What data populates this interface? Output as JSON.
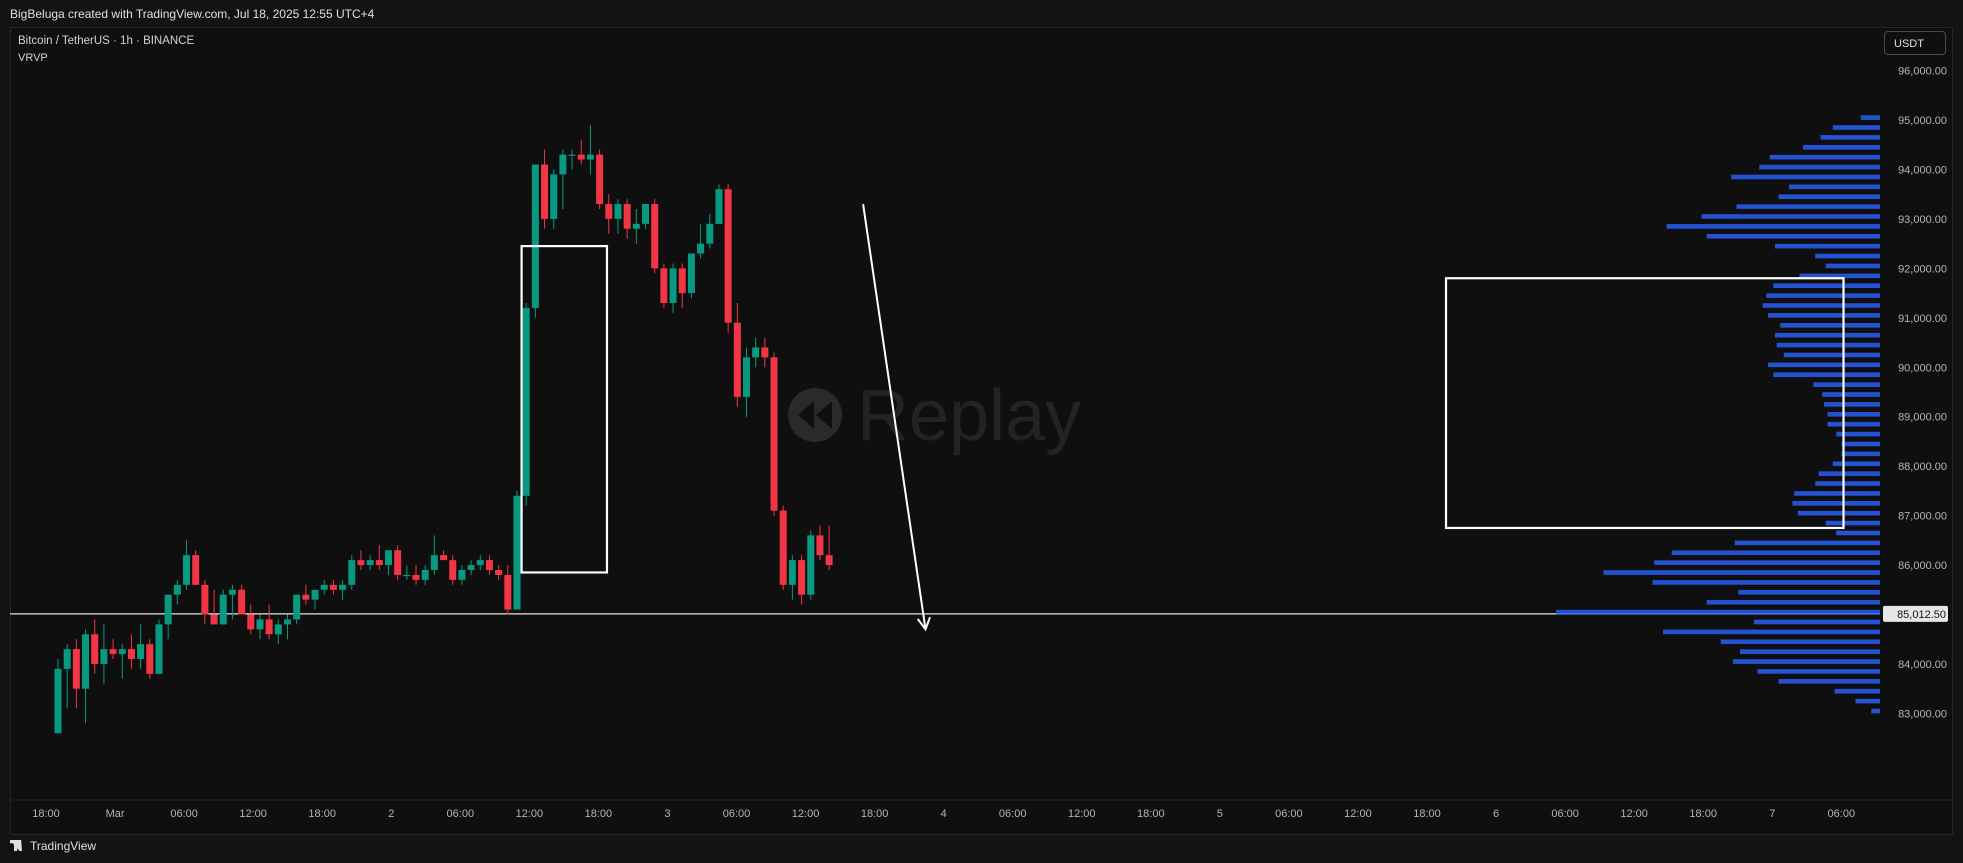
{
  "header": {
    "attribution": "BigBeluga created with TradingView.com, Jul 18, 2025 12:55 UTC+4"
  },
  "symbol": {
    "title": "Bitcoin / TetherUS · 1h · BINANCE",
    "indicator": "VRVP"
  },
  "currency_button": "USDT",
  "watermark": "Replay",
  "footer": {
    "brand": "TradingView"
  },
  "colors": {
    "up": "#089981",
    "down": "#f23645",
    "volume_profile": "#2962ff",
    "background": "#0f0f0f"
  },
  "chart_data": {
    "type": "candlestick",
    "title": "Bitcoin / TetherUS",
    "timeframe": "1h",
    "exchange": "BINANCE",
    "ylim": [
      82600,
      96200
    ],
    "y_ticks": [
      "96,000.00",
      "95,000.00",
      "94,000.00",
      "93,000.00",
      "92,000.00",
      "91,000.00",
      "90,000.00",
      "89,000.00",
      "88,000.00",
      "87,000.00",
      "86,000.00",
      "84,000.00",
      "83,000.00"
    ],
    "y_tick_values": [
      96000,
      95000,
      94000,
      93000,
      92000,
      91000,
      90000,
      89000,
      88000,
      87000,
      86000,
      84000,
      83000
    ],
    "x_ticks": [
      "18:00",
      "Mar",
      "06:00",
      "12:00",
      "18:00",
      "2",
      "06:00",
      "12:00",
      "18:00",
      "3",
      "06:00",
      "12:00",
      "18:00",
      "4",
      "06:00",
      "12:00",
      "18:00",
      "5",
      "06:00",
      "12:00",
      "18:00",
      "6",
      "06:00",
      "12:00",
      "18:00",
      "7",
      "06:00"
    ],
    "price_line": {
      "value": 85012.5,
      "label": "85,012.50"
    },
    "candles": [
      {
        "o": 82600,
        "h": 84100,
        "l": 82600,
        "c": 83900
      },
      {
        "o": 83900,
        "h": 84400,
        "l": 83100,
        "c": 84300
      },
      {
        "o": 84300,
        "h": 84500,
        "l": 83100,
        "c": 83500
      },
      {
        "o": 83500,
        "h": 84700,
        "l": 82800,
        "c": 84600
      },
      {
        "o": 84600,
        "h": 84900,
        "l": 83800,
        "c": 84000
      },
      {
        "o": 84000,
        "h": 84800,
        "l": 83600,
        "c": 84300
      },
      {
        "o": 84300,
        "h": 84500,
        "l": 84100,
        "c": 84200
      },
      {
        "o": 84200,
        "h": 84400,
        "l": 83700,
        "c": 84300
      },
      {
        "o": 84300,
        "h": 84600,
        "l": 83900,
        "c": 84100
      },
      {
        "o": 84100,
        "h": 84800,
        "l": 83900,
        "c": 84400
      },
      {
        "o": 84400,
        "h": 84500,
        "l": 83700,
        "c": 83800
      },
      {
        "o": 83800,
        "h": 84900,
        "l": 83800,
        "c": 84800
      },
      {
        "o": 84800,
        "h": 85400,
        "l": 84500,
        "c": 85400
      },
      {
        "o": 85400,
        "h": 85700,
        "l": 85200,
        "c": 85600
      },
      {
        "o": 85600,
        "h": 86500,
        "l": 85500,
        "c": 86200
      },
      {
        "o": 86200,
        "h": 86300,
        "l": 85600,
        "c": 85600
      },
      {
        "o": 85600,
        "h": 85700,
        "l": 84800,
        "c": 85000
      },
      {
        "o": 85000,
        "h": 85500,
        "l": 84800,
        "c": 84800
      },
      {
        "o": 84800,
        "h": 85500,
        "l": 84800,
        "c": 85400
      },
      {
        "o": 85400,
        "h": 85600,
        "l": 84900,
        "c": 85500
      },
      {
        "o": 85500,
        "h": 85600,
        "l": 85000,
        "c": 85000
      },
      {
        "o": 85000,
        "h": 85200,
        "l": 84600,
        "c": 84700
      },
      {
        "o": 84700,
        "h": 85000,
        "l": 84500,
        "c": 84900
      },
      {
        "o": 84900,
        "h": 85200,
        "l": 84500,
        "c": 84600
      },
      {
        "o": 84600,
        "h": 84900,
        "l": 84400,
        "c": 84800
      },
      {
        "o": 84800,
        "h": 85000,
        "l": 84500,
        "c": 84900
      },
      {
        "o": 84900,
        "h": 85400,
        "l": 84800,
        "c": 85400
      },
      {
        "o": 85400,
        "h": 85600,
        "l": 85200,
        "c": 85300
      },
      {
        "o": 85300,
        "h": 85500,
        "l": 85100,
        "c": 85500
      },
      {
        "o": 85500,
        "h": 85700,
        "l": 85400,
        "c": 85600
      },
      {
        "o": 85600,
        "h": 85700,
        "l": 85400,
        "c": 85500
      },
      {
        "o": 85500,
        "h": 85700,
        "l": 85300,
        "c": 85600
      },
      {
        "o": 85600,
        "h": 86200,
        "l": 85500,
        "c": 86100
      },
      {
        "o": 86100,
        "h": 86300,
        "l": 85900,
        "c": 86000
      },
      {
        "o": 86000,
        "h": 86200,
        "l": 85900,
        "c": 86100
      },
      {
        "o": 86100,
        "h": 86400,
        "l": 85900,
        "c": 86000
      },
      {
        "o": 86000,
        "h": 86300,
        "l": 85800,
        "c": 86300
      },
      {
        "o": 86300,
        "h": 86400,
        "l": 85700,
        "c": 85800
      },
      {
        "o": 85800,
        "h": 86000,
        "l": 85700,
        "c": 85800
      },
      {
        "o": 85800,
        "h": 86000,
        "l": 85600,
        "c": 85700
      },
      {
        "o": 85700,
        "h": 86000,
        "l": 85600,
        "c": 85900
      },
      {
        "o": 85900,
        "h": 86600,
        "l": 85800,
        "c": 86200
      },
      {
        "o": 86200,
        "h": 86300,
        "l": 86100,
        "c": 86100
      },
      {
        "o": 86100,
        "h": 86200,
        "l": 85600,
        "c": 85700
      },
      {
        "o": 85700,
        "h": 86000,
        "l": 85600,
        "c": 85900
      },
      {
        "o": 85900,
        "h": 86100,
        "l": 85800,
        "c": 86000
      },
      {
        "o": 86000,
        "h": 86200,
        "l": 85900,
        "c": 86100
      },
      {
        "o": 86100,
        "h": 86200,
        "l": 85800,
        "c": 85900
      },
      {
        "o": 85900,
        "h": 86000,
        "l": 85700,
        "c": 85800
      },
      {
        "o": 85800,
        "h": 86000,
        "l": 85000,
        "c": 85100
      },
      {
        "o": 85100,
        "h": 87500,
        "l": 85100,
        "c": 87400
      },
      {
        "o": 87400,
        "h": 91300,
        "l": 87200,
        "c": 91200
      },
      {
        "o": 91200,
        "h": 94100,
        "l": 91000,
        "c": 94100
      },
      {
        "o": 94100,
        "h": 94400,
        "l": 92800,
        "c": 93000
      },
      {
        "o": 93000,
        "h": 94000,
        "l": 92800,
        "c": 93900
      },
      {
        "o": 93900,
        "h": 94400,
        "l": 93200,
        "c": 94300
      },
      {
        "o": 94300,
        "h": 94400,
        "l": 94000,
        "c": 94300
      },
      {
        "o": 94300,
        "h": 94600,
        "l": 94100,
        "c": 94200
      },
      {
        "o": 94200,
        "h": 94900,
        "l": 93900,
        "c": 94300
      },
      {
        "o": 94300,
        "h": 94400,
        "l": 93200,
        "c": 93300
      },
      {
        "o": 93300,
        "h": 93500,
        "l": 92700,
        "c": 93000
      },
      {
        "o": 93000,
        "h": 93400,
        "l": 92700,
        "c": 93300
      },
      {
        "o": 93300,
        "h": 93400,
        "l": 92600,
        "c": 92800
      },
      {
        "o": 92800,
        "h": 93200,
        "l": 92500,
        "c": 92900
      },
      {
        "o": 92900,
        "h": 93300,
        "l": 92800,
        "c": 93300
      },
      {
        "o": 93300,
        "h": 93400,
        "l": 91900,
        "c": 92000
      },
      {
        "o": 92000,
        "h": 92100,
        "l": 91200,
        "c": 91300
      },
      {
        "o": 91300,
        "h": 92100,
        "l": 91100,
        "c": 92000
      },
      {
        "o": 92000,
        "h": 92100,
        "l": 91200,
        "c": 91500
      },
      {
        "o": 91500,
        "h": 92300,
        "l": 91400,
        "c": 92300
      },
      {
        "o": 92300,
        "h": 92900,
        "l": 92200,
        "c": 92500
      },
      {
        "o": 92500,
        "h": 93100,
        "l": 92400,
        "c": 92900
      },
      {
        "o": 92900,
        "h": 93700,
        "l": 92900,
        "c": 93600
      },
      {
        "o": 93600,
        "h": 93700,
        "l": 90700,
        "c": 90900
      },
      {
        "o": 90900,
        "h": 91300,
        "l": 89200,
        "c": 89400
      },
      {
        "o": 89400,
        "h": 90400,
        "l": 89000,
        "c": 90200
      },
      {
        "o": 90200,
        "h": 90600,
        "l": 90000,
        "c": 90400
      },
      {
        "o": 90400,
        "h": 90600,
        "l": 90000,
        "c": 90200
      },
      {
        "o": 90200,
        "h": 90300,
        "l": 87000,
        "c": 87100
      },
      {
        "o": 87100,
        "h": 87200,
        "l": 85500,
        "c": 85600
      },
      {
        "o": 85600,
        "h": 86200,
        "l": 85300,
        "c": 86100
      },
      {
        "o": 86100,
        "h": 86200,
        "l": 85200,
        "c": 85400
      },
      {
        "o": 85400,
        "h": 86700,
        "l": 85300,
        "c": 86600
      },
      {
        "o": 86600,
        "h": 86800,
        "l": 86100,
        "c": 86200
      },
      {
        "o": 86200,
        "h": 86800,
        "l": 85900,
        "c": 86000
      }
    ],
    "volume_profile": {
      "bins": [
        {
          "price": 95000,
          "vol": 0.11
        },
        {
          "price": 94800,
          "vol": 0.27
        },
        {
          "price": 94600,
          "vol": 0.34
        },
        {
          "price": 94400,
          "vol": 0.44
        },
        {
          "price": 94200,
          "vol": 0.63
        },
        {
          "price": 94000,
          "vol": 0.69
        },
        {
          "price": 93800,
          "vol": 0.85
        },
        {
          "price": 93600,
          "vol": 0.52
        },
        {
          "price": 93400,
          "vol": 0.58
        },
        {
          "price": 93200,
          "vol": 0.82
        },
        {
          "price": 93000,
          "vol": 1.02
        },
        {
          "price": 92800,
          "vol": 1.22
        },
        {
          "price": 92600,
          "vol": 0.99
        },
        {
          "price": 92400,
          "vol": 0.6
        },
        {
          "price": 92200,
          "vol": 0.37
        },
        {
          "price": 92000,
          "vol": 0.31
        },
        {
          "price": 91800,
          "vol": 0.46
        },
        {
          "price": 91600,
          "vol": 0.61
        },
        {
          "price": 91400,
          "vol": 0.65
        },
        {
          "price": 91200,
          "vol": 0.67
        },
        {
          "price": 91000,
          "vol": 0.64
        },
        {
          "price": 90800,
          "vol": 0.57
        },
        {
          "price": 90600,
          "vol": 0.6
        },
        {
          "price": 90400,
          "vol": 0.59
        },
        {
          "price": 90200,
          "vol": 0.55
        },
        {
          "price": 90000,
          "vol": 0.64
        },
        {
          "price": 89800,
          "vol": 0.61
        },
        {
          "price": 89600,
          "vol": 0.38
        },
        {
          "price": 89400,
          "vol": 0.33
        },
        {
          "price": 89200,
          "vol": 0.32
        },
        {
          "price": 89000,
          "vol": 0.3
        },
        {
          "price": 88800,
          "vol": 0.3
        },
        {
          "price": 88600,
          "vol": 0.25
        },
        {
          "price": 88400,
          "vol": 0.22
        },
        {
          "price": 88200,
          "vol": 0.22
        },
        {
          "price": 88000,
          "vol": 0.27
        },
        {
          "price": 87800,
          "vol": 0.35
        },
        {
          "price": 87600,
          "vol": 0.37
        },
        {
          "price": 87400,
          "vol": 0.49
        },
        {
          "price": 87200,
          "vol": 0.5
        },
        {
          "price": 87000,
          "vol": 0.47
        },
        {
          "price": 86800,
          "vol": 0.31
        },
        {
          "price": 86600,
          "vol": 0.25
        },
        {
          "price": 86400,
          "vol": 0.83
        },
        {
          "price": 86200,
          "vol": 1.19
        },
        {
          "price": 86000,
          "vol": 1.29
        },
        {
          "price": 85800,
          "vol": 1.58
        },
        {
          "price": 85600,
          "vol": 1.3
        },
        {
          "price": 85400,
          "vol": 0.81
        },
        {
          "price": 85200,
          "vol": 0.99
        },
        {
          "price": 85000,
          "vol": 1.85
        },
        {
          "price": 84800,
          "vol": 0.72
        },
        {
          "price": 84600,
          "vol": 1.24
        },
        {
          "price": 84400,
          "vol": 0.91
        },
        {
          "price": 84200,
          "vol": 0.8
        },
        {
          "price": 84000,
          "vol": 0.84
        },
        {
          "price": 83800,
          "vol": 0.7
        },
        {
          "price": 83600,
          "vol": 0.58
        },
        {
          "price": 83400,
          "vol": 0.26
        },
        {
          "price": 83200,
          "vol": 0.14
        },
        {
          "price": 83000,
          "vol": 0.05
        }
      ]
    },
    "annotations": {
      "rectangles": [
        {
          "t0": 50.5,
          "t1": 59.8,
          "p0": 85850,
          "p1": 92450
        },
        {
          "t0": 151.2,
          "t1": 194.5,
          "p0": 86750,
          "p1": 91800
        }
      ],
      "arrow": {
        "t0": 87.7,
        "p0": 93300,
        "t1": 94.5,
        "p1": 84700
      }
    }
  }
}
